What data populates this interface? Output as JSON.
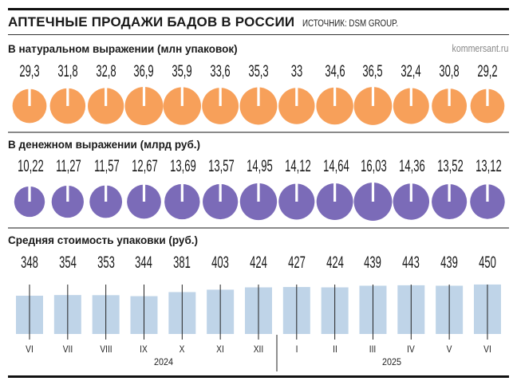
{
  "header": {
    "title": "АПТЕЧНЫЕ ПРОДАЖИ БАДОВ В РОССИИ",
    "source": "ИСТОЧНИК: DSM GROUP.",
    "credit": "kommersant.ru"
  },
  "colors": {
    "units": "#F7A05A",
    "money": "#7B6BB8",
    "price": "#BFD4E8",
    "divider": "#8a8a8a"
  },
  "chart_data": [
    {
      "type": "pie",
      "title": "В натуральном выражении (млн упаковок)",
      "categories": [
        "VI",
        "VII",
        "VIII",
        "IX",
        "X",
        "XI",
        "XII",
        "I",
        "II",
        "III",
        "IV",
        "V",
        "VI"
      ],
      "values": [
        29.3,
        31.8,
        32.8,
        36.9,
        35.9,
        33.6,
        35.3,
        33,
        34.6,
        36.5,
        32.4,
        30.8,
        29.2
      ],
      "labels": [
        "29,3",
        "31,8",
        "32,8",
        "36,9",
        "35,9",
        "33,6",
        "35,3",
        "33",
        "34,6",
        "36,5",
        "32,4",
        "30,8",
        "29,2"
      ]
    },
    {
      "type": "pie",
      "title": "В денежном выражении (млрд руб.)",
      "categories": [
        "VI",
        "VII",
        "VIII",
        "IX",
        "X",
        "XI",
        "XII",
        "I",
        "II",
        "III",
        "IV",
        "V",
        "VI"
      ],
      "values": [
        10.22,
        11.27,
        11.57,
        12.67,
        13.69,
        13.57,
        14.95,
        14.12,
        14.64,
        16.03,
        14.36,
        13.52,
        13.12
      ],
      "labels": [
        "10,22",
        "11,27",
        "11,57",
        "12,67",
        "13,69",
        "13,57",
        "14,95",
        "14,12",
        "14,64",
        "16,03",
        "14,36",
        "13,52",
        "13,12"
      ]
    },
    {
      "type": "bar",
      "title": "Средняя стоимость упаковки (руб.)",
      "categories": [
        "VI",
        "VII",
        "VIII",
        "IX",
        "X",
        "XI",
        "XII",
        "I",
        "II",
        "III",
        "IV",
        "V",
        "VI"
      ],
      "values": [
        348,
        354,
        353,
        344,
        381,
        403,
        424,
        427,
        424,
        439,
        443,
        439,
        450
      ],
      "labels": [
        "348",
        "354",
        "353",
        "344",
        "381",
        "403",
        "424",
        "427",
        "424",
        "439",
        "443",
        "439",
        "450"
      ],
      "years": [
        "2024",
        "2025"
      ]
    }
  ]
}
